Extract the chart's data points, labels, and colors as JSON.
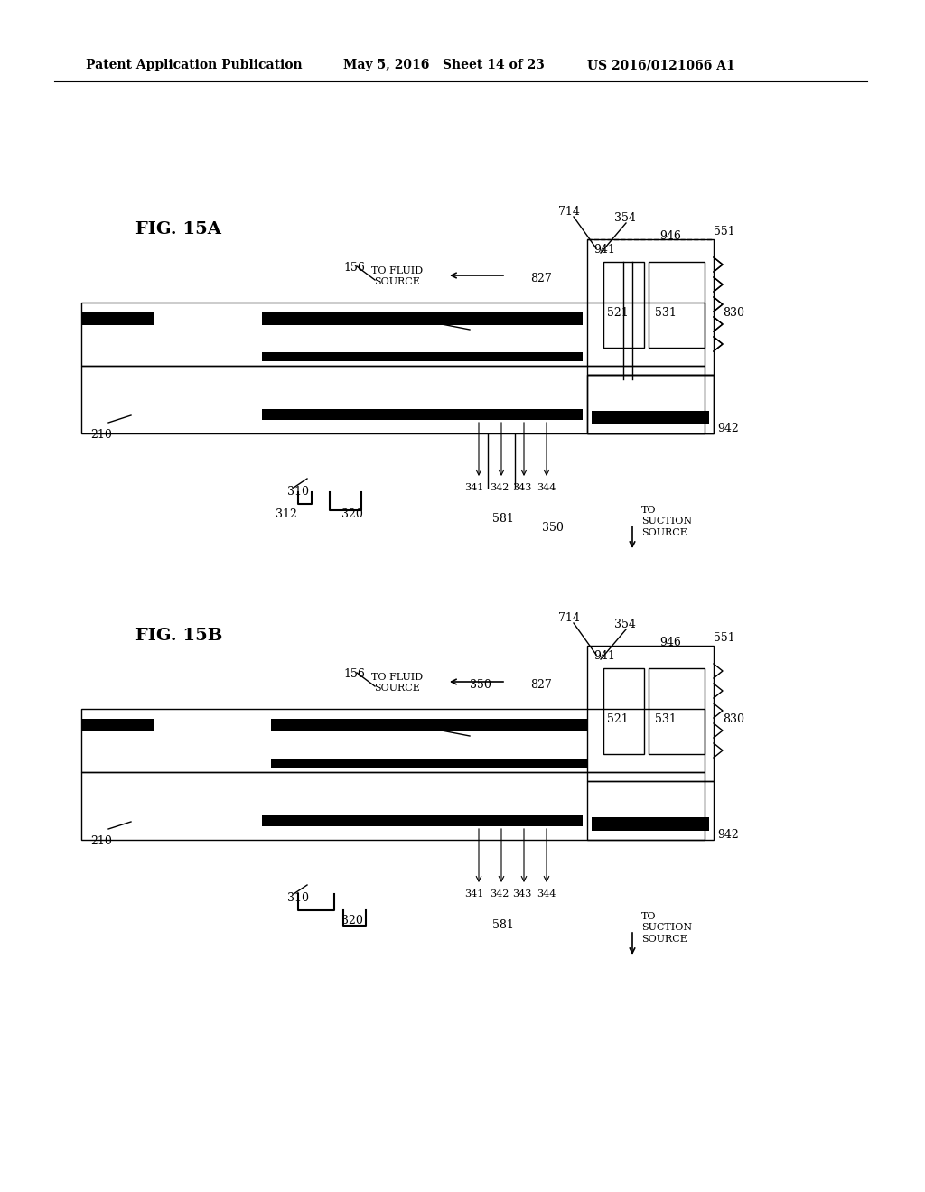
{
  "bg_color": "#ffffff",
  "header_text": "Patent Application Publication",
  "header_date": "May 5, 2016",
  "header_sheet": "Sheet 14 of 23",
  "header_patent": "US 2016/0121066 A1",
  "fig_a_label": "FIG. 15A",
  "fig_b_label": "FIG. 15B",
  "line_color": "#000000",
  "line_color_thin": "#555555",
  "thick_line": 3.5,
  "thin_line": 1.0,
  "label_fontsize": 9,
  "header_fontsize": 10,
  "fig_label_fontsize": 14
}
